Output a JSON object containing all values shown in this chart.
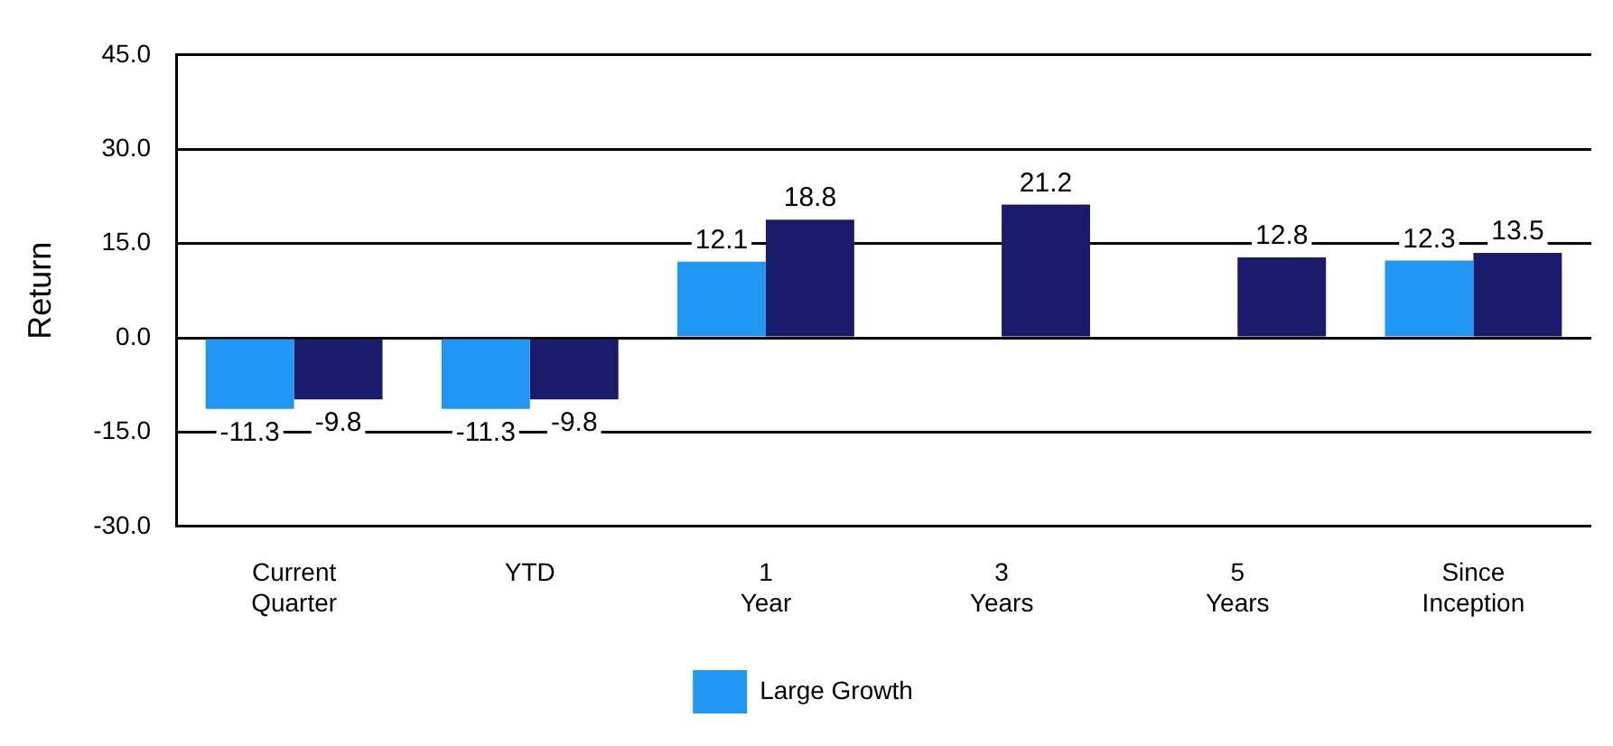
{
  "chart_data": {
    "type": "bar",
    "ylabel": "Return",
    "categories": [
      "Current Quarter",
      "YTD",
      "1 Year",
      "3 Years",
      "5 Years",
      "Since Inception"
    ],
    "series": [
      {
        "name": "Large Growth",
        "color": "#2196f3",
        "values": [
          -11.3,
          -11.3,
          12.1,
          null,
          null,
          12.3
        ]
      },
      {
        "color": "#1b1b6b",
        "values": [
          -9.8,
          -9.8,
          18.8,
          21.2,
          12.8,
          13.5
        ]
      }
    ],
    "ylim": [
      -30,
      45
    ],
    "yticks": [
      {
        "value": -30,
        "label": "-30.0"
      },
      {
        "value": -15,
        "label": "-15.0"
      },
      {
        "value": 0,
        "label": "0.0"
      },
      {
        "value": 15,
        "label": "15.0"
      },
      {
        "value": 30,
        "label": "30.0"
      },
      {
        "value": 45,
        "label": "45.0"
      }
    ],
    "grid": "y",
    "legend": "bottom",
    "data_labels": true
  }
}
